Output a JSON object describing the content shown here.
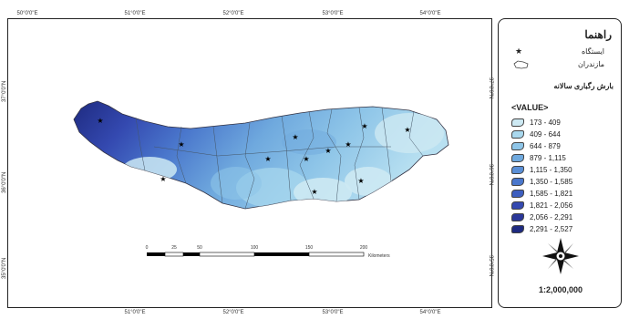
{
  "graticule": {
    "top": [
      "50°0'0\"E",
      "51°0'0\"E",
      "52°0'0\"E",
      "53°0'0\"E",
      "54°0'0\"E"
    ],
    "bottom": [
      "51°0'0\"E",
      "52°0'0\"E",
      "53°0'0\"E",
      "54°0'0\"E"
    ],
    "left": [
      "37°0'0\"N",
      "36°0'0\"N",
      "35°0'0\"N"
    ],
    "right": [
      "37°0'0\"N",
      "36°0'0\"N",
      "35°0'0\"N"
    ]
  },
  "scalebar": {
    "ticks": [
      "0",
      "25",
      "50",
      "100",
      "150",
      "200"
    ],
    "unit": "Kilometers"
  },
  "legend": {
    "title": "راهنما",
    "station_label": "ایستگاه",
    "province_label": "مازندران",
    "rainfall_heading": "بارش رگباری سالانه",
    "value_header": "<VALUE>",
    "classes": [
      {
        "label": "173 - 409",
        "color": "#cde9f3"
      },
      {
        "label": "409 - 644",
        "color": "#a9d8ee"
      },
      {
        "label": "644 - 879",
        "color": "#8ec5e8"
      },
      {
        "label": "879 - 1,115",
        "color": "#6fa9de"
      },
      {
        "label": "1,115 - 1,350",
        "color": "#5a8fd6"
      },
      {
        "label": "1,350 - 1,585",
        "color": "#4a77cc"
      },
      {
        "label": "1,585 - 1,821",
        "color": "#3d5fc0"
      },
      {
        "label": "1,821 - 2,056",
        "color": "#3449b0"
      },
      {
        "label": "2,056 - 2,291",
        "color": "#2a3799"
      },
      {
        "label": "2,291 - 2,527",
        "color": "#1e2a80"
      }
    ]
  },
  "scale_text": "1:2,000,000",
  "colors": {
    "boundary": "#445566",
    "frame": "#222222"
  }
}
